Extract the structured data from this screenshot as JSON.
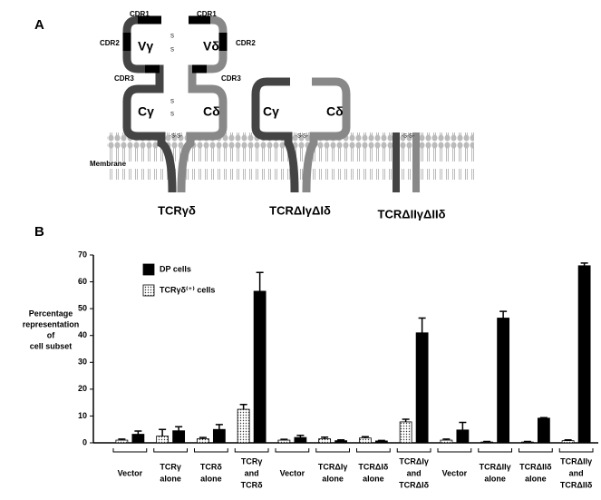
{
  "diagram": {
    "panel_label": "A",
    "cdr1": "CDR1",
    "cdr2": "CDR2",
    "cdr3": "CDR3",
    "v_gamma": "Vγ",
    "v_delta": "Vδ",
    "c_gamma": "Cγ",
    "c_delta": "Cδ",
    "membrane": "Membrane",
    "constructs": [
      "TCRγδ",
      "TCRΔIγΔIδ",
      "TCRΔIIγΔIIδ"
    ]
  },
  "chart_data": {
    "type": "bar",
    "panel_label": "B",
    "y_label": [
      "Percentage",
      "representation",
      "of",
      "cell subset"
    ],
    "categories": [
      [
        "Vector"
      ],
      [
        "TCRγ",
        "alone"
      ],
      [
        "TCRδ",
        "alone"
      ],
      [
        "TCRγ",
        "and",
        "TCRδ"
      ],
      [
        "Vector"
      ],
      [
        "TCRΔIγ",
        "alone"
      ],
      [
        "TCRΔIδ",
        "alone"
      ],
      [
        "TCRΔIγ",
        "and",
        "TCRΔIδ"
      ],
      [
        "Vector"
      ],
      [
        "TCRΔIIγ",
        "alone"
      ],
      [
        "TCRΔIIδ",
        "alone"
      ],
      [
        "TCRΔIIγ",
        "and",
        "TCRΔIIδ"
      ]
    ],
    "series": [
      {
        "name": "TCRγδ⁽⁺⁾ cells",
        "color": "dotted",
        "values": [
          1,
          2.5,
          1.5,
          12.5,
          1,
          1.5,
          1.8,
          7.8,
          1,
          0.3,
          0.3,
          0.8
        ],
        "errors": [
          0.4,
          2.5,
          0.5,
          1.8,
          0.3,
          0.6,
          0.5,
          1,
          0.4,
          0.2,
          0.2,
          0.3
        ]
      },
      {
        "name": "DP cells",
        "color": "#000000",
        "values": [
          3.2,
          4.5,
          5,
          56.5,
          2,
          0.8,
          0.7,
          41,
          4.8,
          46.5,
          9.2,
          66
        ],
        "errors": [
          1.2,
          1.5,
          1.8,
          7,
          0.8,
          0.3,
          0.2,
          5.5,
          2.8,
          2.5,
          0.2,
          1
        ]
      }
    ],
    "ylim": [
      0,
      70
    ],
    "yticks": [
      0,
      10,
      20,
      30,
      40,
      50,
      60,
      70
    ],
    "legend": "upper left"
  }
}
